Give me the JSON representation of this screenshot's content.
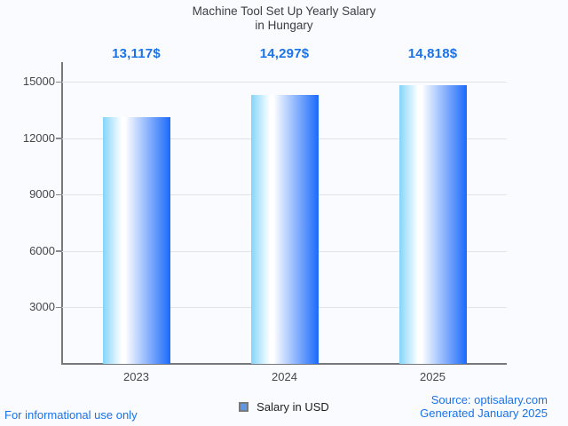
{
  "chart_data": {
    "type": "bar",
    "title": "Machine Tool Set Up Yearly Salary in Hungary",
    "title_lines": [
      "Machine Tool Set Up Yearly Salary",
      "in Hungary"
    ],
    "categories": [
      "2023",
      "2024",
      "2025"
    ],
    "series": [
      {
        "name": "Salary in USD",
        "values": [
          13117,
          14297,
          14818
        ]
      }
    ],
    "value_labels": [
      "13,117$",
      "14,297$",
      "14,818$"
    ],
    "xlabel": "",
    "ylabel": "",
    "ylim": [
      0,
      15000
    ],
    "yticks": [
      3000,
      6000,
      9000,
      12000,
      15000
    ],
    "grid": true,
    "legend": {
      "label": "Salary in USD",
      "position": "bottom"
    }
  },
  "footer": {
    "disclaimer": "For informational use only",
    "source": "Source: optisalary.com",
    "generated": "Generated January 2025"
  },
  "colors": {
    "accent_blue": "#1a73e8",
    "bar_gradient_start": "#84d5f9",
    "bar_gradient_mid": "#ffffff",
    "bar_gradient_end": "#1a6afb",
    "legend_swatch": "#5e97e8",
    "axis_line": "#75797d",
    "gridline": "#e3e4e7",
    "text_dark": "#3b3e42",
    "background": "#fafbfe"
  }
}
